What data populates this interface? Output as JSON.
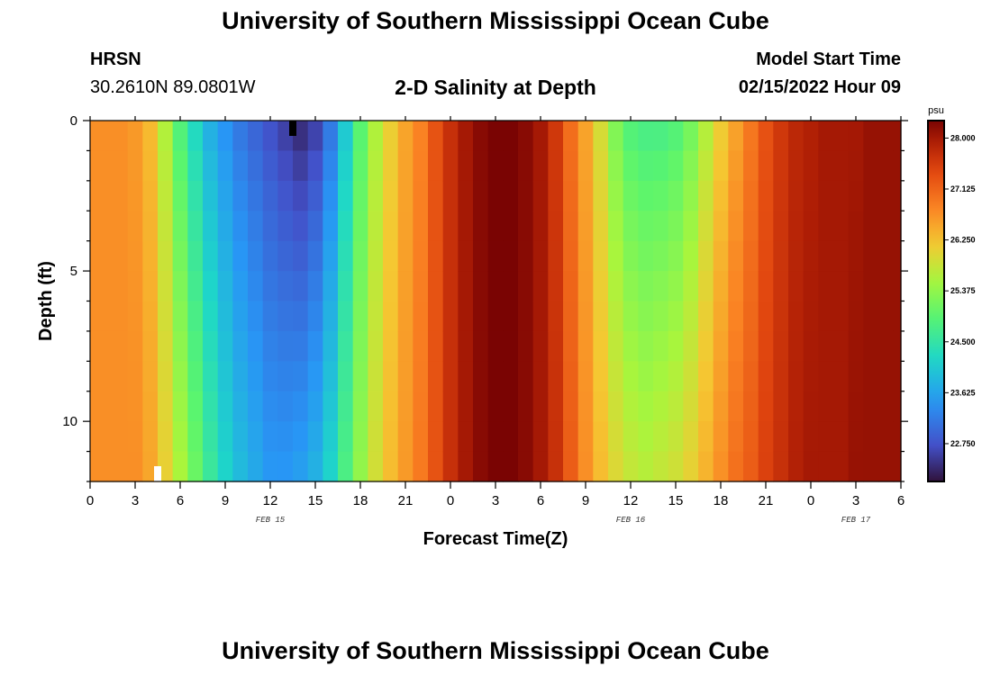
{
  "header": {
    "title": "University of Southern Mississippi Ocean Cube",
    "station": "HRSN",
    "coordinates": "30.2610N  89.0801W",
    "subtitle": "2-D Salinity at Depth",
    "model_start_label": "Model Start Time",
    "model_start_value": "02/15/2022 Hour 09"
  },
  "footer": {
    "title": "University of Southern Mississippi Ocean Cube"
  },
  "chart_data": {
    "type": "heatmap",
    "title": "2-D Salinity at Depth",
    "xlabel": "Forecast Time(Z)",
    "ylabel": "Depth (ft)",
    "x_range_hours": [
      0,
      54
    ],
    "y_range_ft": [
      0,
      12
    ],
    "x_tick_labels": [
      "0",
      "3",
      "6",
      "9",
      "12",
      "15",
      "18",
      "21",
      "0",
      "3",
      "6",
      "9",
      "12",
      "15",
      "18",
      "21",
      "0",
      "3",
      "6"
    ],
    "y_tick_labels": [
      "0",
      "5",
      "10"
    ],
    "y_tick_values": [
      0,
      5,
      10
    ],
    "date_labels": [
      {
        "text": "FEB 15",
        "hour": 12
      },
      {
        "text": "FEB 16",
        "hour": 36
      },
      {
        "text": "FEB 17",
        "hour": 51
      }
    ],
    "colorbar": {
      "unit": "psu",
      "min": 22.1,
      "max": 28.3,
      "tick_labels": [
        "28.000",
        "27.125",
        "26.250",
        "25.375",
        "24.500",
        "23.625",
        "22.750"
      ],
      "tick_values": [
        28.0,
        27.125,
        26.25,
        25.375,
        24.5,
        23.625,
        22.75
      ]
    },
    "surface_salinity_by_hour": [
      26.7,
      26.7,
      26.7,
      26.6,
      26.3,
      25.6,
      24.8,
      24.2,
      23.7,
      23.4,
      23.1,
      22.9,
      22.7,
      22.5,
      22.3,
      22.5,
      23.1,
      24.0,
      24.9,
      25.6,
      26.1,
      26.5,
      26.8,
      27.3,
      27.7,
      28.0,
      28.2,
      28.3,
      28.3,
      28.2,
      28.0,
      27.6,
      27.0,
      26.5,
      25.9,
      25.2,
      24.8,
      24.7,
      24.7,
      24.8,
      25.1,
      25.6,
      26.1,
      26.5,
      26.9,
      27.3,
      27.6,
      27.8,
      27.9,
      28.0,
      28.0,
      28.0,
      28.1,
      28.1,
      28.1
    ],
    "bottom_salinity_by_hour": [
      26.7,
      26.7,
      26.7,
      26.7,
      26.5,
      26.1,
      25.6,
      25.1,
      24.6,
      24.2,
      23.9,
      23.7,
      23.5,
      23.5,
      23.6,
      23.8,
      24.2,
      24.8,
      25.4,
      25.9,
      26.3,
      26.6,
      26.9,
      27.3,
      27.7,
      28.0,
      28.2,
      28.3,
      28.3,
      28.2,
      28.0,
      27.7,
      27.2,
      26.7,
      26.3,
      26.0,
      25.8,
      25.7,
      25.8,
      25.9,
      26.1,
      26.4,
      26.7,
      27.0,
      27.2,
      27.5,
      27.7,
      27.9,
      28.0,
      28.0,
      28.0,
      28.1,
      28.1,
      28.1,
      28.1
    ],
    "markers": [
      {
        "hour": 13.5,
        "depth_ft": 0,
        "color": "#000000"
      },
      {
        "hour": 4.5,
        "depth_ft": 12,
        "color": "#ffffff"
      }
    ]
  }
}
